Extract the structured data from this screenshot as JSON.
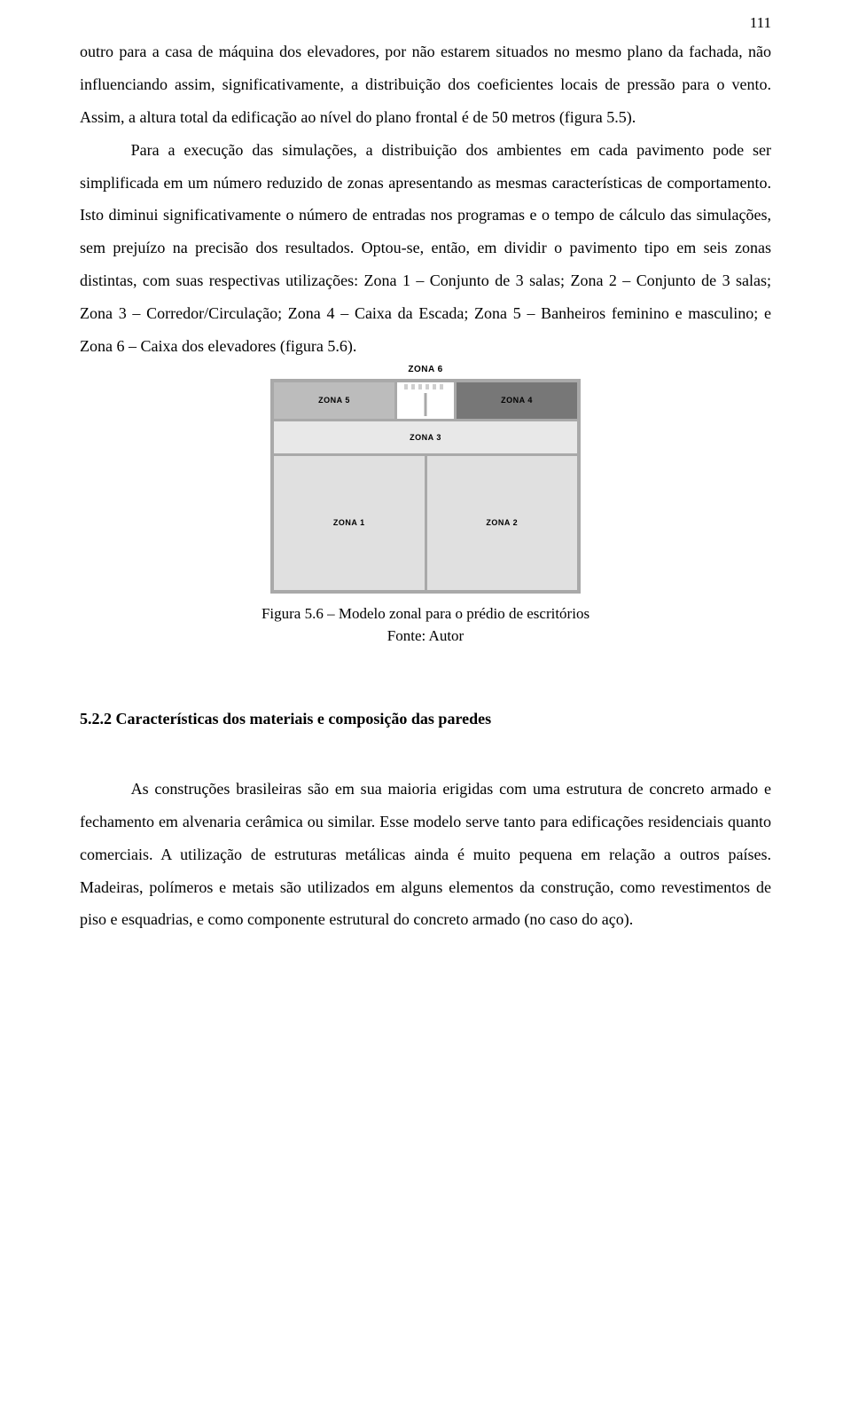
{
  "pageNumber": "111",
  "paragraphs": {
    "p1": "outro para a casa de máquina dos elevadores, por não estarem situados no mesmo plano da fachada, não influenciando assim, significativamente, a distribuição dos coeficientes locais de pressão para o vento. Assim, a altura total da edificação ao nível do plano frontal é de 50 metros (figura 5.5).",
    "p2": "Para a execução das simulações, a distribuição dos ambientes em cada pavimento pode ser simplificada em um número reduzido de zonas apresentando as mesmas características de comportamento. Isto diminui significativamente o número de entradas nos programas e o tempo de cálculo das simulações, sem prejuízo na precisão dos resultados. Optou-se, então, em dividir o pavimento tipo em seis zonas distintas, com suas respectivas utilizações: Zona 1 – Conjunto de 3 salas; Zona 2 – Conjunto de 3 salas; Zona 3 – Corredor/Circulação; Zona 4 – Caixa da Escada; Zona 5 – Banheiros feminino e masculino; e Zona 6 – Caixa dos elevadores (figura 5.6).",
    "p3": "As construções brasileiras são em sua maioria erigidas com uma estrutura de concreto armado e fechamento em alvenaria cerâmica ou similar. Esse modelo serve tanto para edificações residenciais quanto comerciais. A utilização de estruturas metálicas ainda é muito pequena em relação a outros países. Madeiras, polímeros e metais são utilizados em alguns elementos da construção, como revestimentos de piso e esquadrias, e como componente estrutural do concreto armado (no caso do aço)."
  },
  "figure": {
    "zone1": "ZONA 1",
    "zone2": "ZONA 2",
    "zone3": "ZONA 3",
    "zone4": "ZONA 4",
    "zone5": "ZONA 5",
    "zone6": "ZONA 6",
    "captionLine1": "Figura 5.6 – Modelo zonal para o prédio de escritórios",
    "captionLine2": "Fonte: Autor",
    "colors": {
      "border": "#a9a9a9",
      "zone5_bg": "#bcbcbc",
      "zone4_bg": "#777777",
      "corridor_bg": "#e8e8e8",
      "bottom_bg": "#e0e0e0"
    }
  },
  "sectionHeading": "5.2.2 Características dos materiais e composição das paredes"
}
